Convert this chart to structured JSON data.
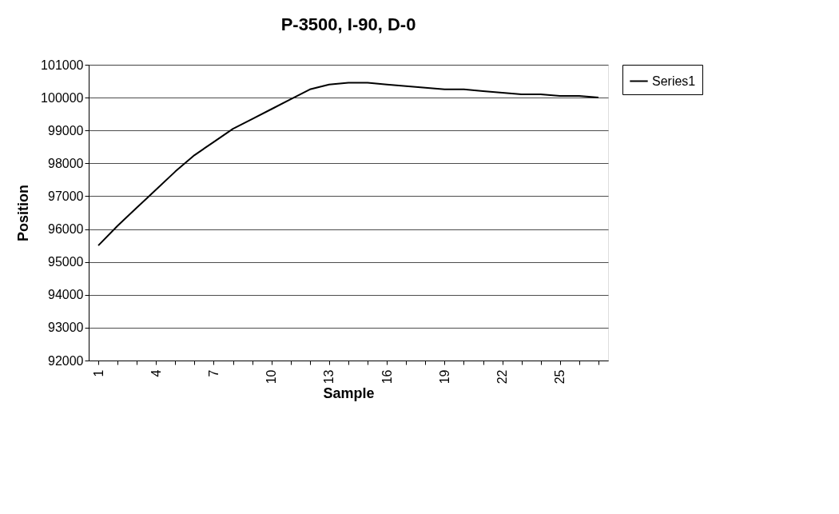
{
  "chart_data": {
    "type": "line",
    "title": "P-3500, I-90, D-0",
    "xlabel": "Sample",
    "ylabel": "Position",
    "categories": [
      "1",
      null,
      null,
      "4",
      null,
      null,
      "7",
      null,
      null,
      "10",
      null,
      null,
      "13",
      null,
      null,
      "16",
      null,
      null,
      "19",
      null,
      null,
      "22",
      null,
      null,
      "25",
      null,
      null
    ],
    "series": [
      {
        "name": "Series1",
        "color": "#000000",
        "values": [
          95500,
          96100,
          96650,
          97200,
          97750,
          98250,
          98650,
          99050,
          99350,
          99650,
          99950,
          100250,
          100400,
          100450,
          100450,
          100400,
          100350,
          100300,
          100250,
          100250,
          100200,
          100150,
          100100,
          100100,
          100050,
          100050,
          100000
        ]
      }
    ],
    "ylim": [
      92000,
      101000
    ],
    "yticks": [
      92000,
      93000,
      94000,
      95000,
      96000,
      97000,
      98000,
      99000,
      100000,
      101000
    ],
    "grid": "y",
    "legend": "right",
    "marker": "none",
    "line_style": "solid"
  }
}
